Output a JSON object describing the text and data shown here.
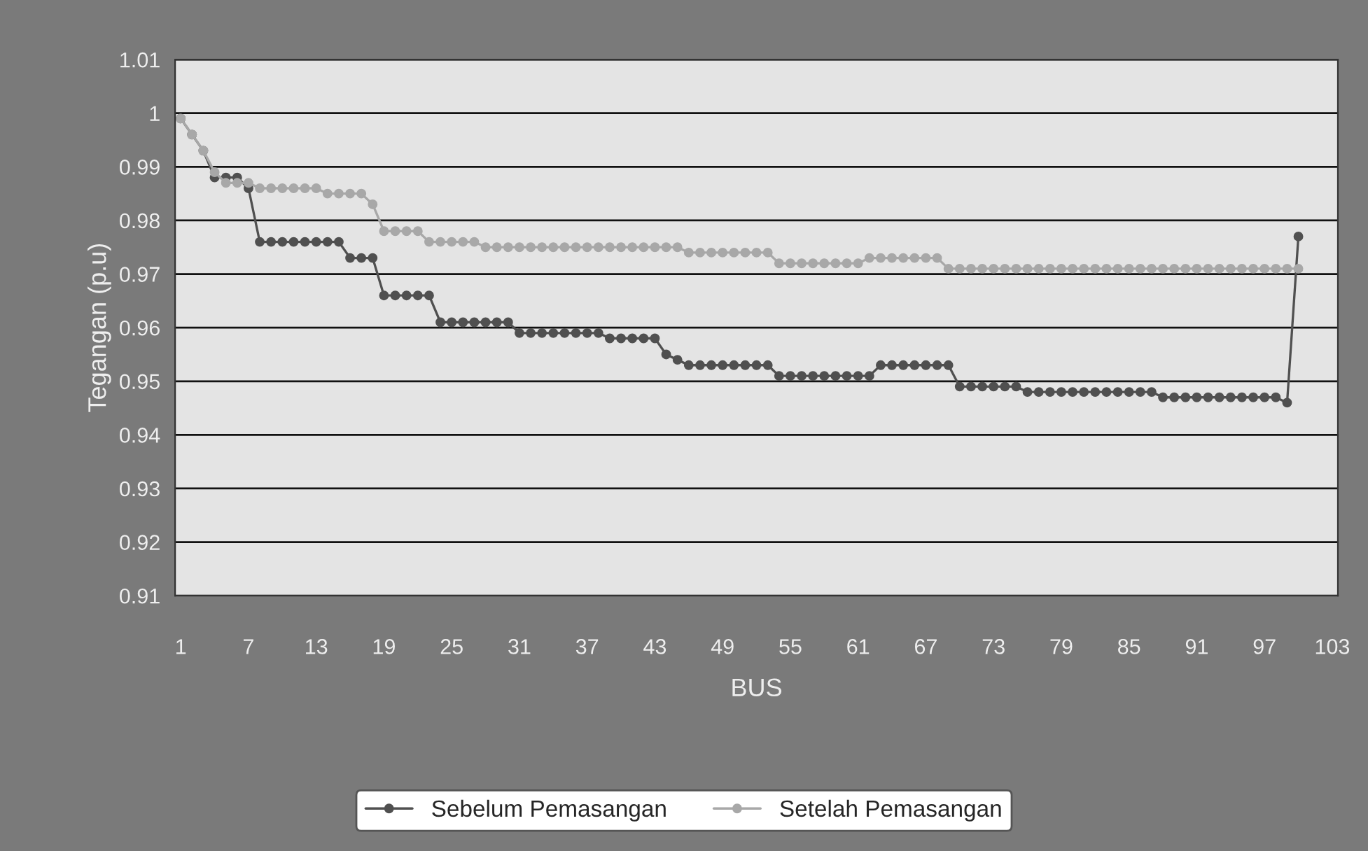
{
  "chart_data": {
    "type": "line",
    "xlabel": "BUS",
    "ylabel": "Tegangan (p.u)",
    "categories": [
      "1",
      null,
      null,
      null,
      null,
      null,
      "7",
      null,
      null,
      null,
      null,
      null,
      "13",
      null,
      null,
      null,
      null,
      null,
      "19",
      null,
      null,
      null,
      null,
      null,
      "25",
      null,
      null,
      null,
      null,
      null,
      "31",
      null,
      null,
      null,
      null,
      null,
      "37",
      null,
      null,
      null,
      null,
      null,
      "43",
      null,
      null,
      null,
      null,
      null,
      "49",
      null,
      null,
      null,
      null,
      null,
      "55",
      null,
      null,
      null,
      null,
      null,
      "61",
      null,
      null,
      null,
      null,
      null,
      "67",
      null,
      null,
      null,
      null,
      null,
      "73",
      null,
      null,
      null,
      null,
      null,
      "79",
      null,
      null,
      null,
      null,
      null,
      "85",
      null,
      null,
      null,
      null,
      null,
      "91",
      null,
      null,
      null,
      null,
      null,
      "97",
      null,
      null,
      null,
      null,
      null,
      "103"
    ],
    "series": [
      {
        "name": "Sebelum Pemasangan",
        "color": "#505050",
        "values": [
          0.999,
          0.996,
          0.993,
          0.988,
          0.988,
          0.988,
          0.986,
          0.976,
          0.976,
          0.976,
          0.976,
          0.976,
          0.976,
          0.976,
          0.976,
          0.973,
          0.973,
          0.973,
          0.966,
          0.966,
          0.966,
          0.966,
          0.966,
          0.961,
          0.961,
          0.961,
          0.961,
          0.961,
          0.961,
          0.961,
          0.959,
          0.959,
          0.959,
          0.959,
          0.959,
          0.959,
          0.959,
          0.959,
          0.958,
          0.958,
          0.958,
          0.958,
          0.958,
          0.955,
          0.954,
          0.953,
          0.953,
          0.953,
          0.953,
          0.953,
          0.953,
          0.953,
          0.953,
          0.951,
          0.951,
          0.951,
          0.951,
          0.951,
          0.951,
          0.951,
          0.951,
          0.951,
          0.953,
          0.953,
          0.953,
          0.953,
          0.953,
          0.953,
          0.953,
          0.949,
          0.949,
          0.949,
          0.949,
          0.949,
          0.949,
          0.948,
          0.948,
          0.948,
          0.948,
          0.948,
          0.948,
          0.948,
          0.948,
          0.948,
          0.948,
          0.948,
          0.948,
          0.947,
          0.947,
          0.947,
          0.947,
          0.947,
          0.947,
          0.947,
          0.947,
          0.947,
          0.947,
          0.947,
          0.946,
          0.977,
          null,
          null,
          null
        ]
      },
      {
        "name": "Setelah Pemasangan",
        "color": "#a8a8a8",
        "values": [
          0.999,
          0.996,
          0.993,
          0.989,
          0.987,
          0.987,
          0.987,
          0.986,
          0.986,
          0.986,
          0.986,
          0.986,
          0.986,
          0.985,
          0.985,
          0.985,
          0.985,
          0.983,
          0.978,
          0.978,
          0.978,
          0.978,
          0.976,
          0.976,
          0.976,
          0.976,
          0.976,
          0.975,
          0.975,
          0.975,
          0.975,
          0.975,
          0.975,
          0.975,
          0.975,
          0.975,
          0.975,
          0.975,
          0.975,
          0.975,
          0.975,
          0.975,
          0.975,
          0.975,
          0.975,
          0.974,
          0.974,
          0.974,
          0.974,
          0.974,
          0.974,
          0.974,
          0.974,
          0.972,
          0.972,
          0.972,
          0.972,
          0.972,
          0.972,
          0.972,
          0.972,
          0.973,
          0.973,
          0.973,
          0.973,
          0.973,
          0.973,
          0.973,
          0.971,
          0.971,
          0.971,
          0.971,
          0.971,
          0.971,
          0.971,
          0.971,
          0.971,
          0.971,
          0.971,
          0.971,
          0.971,
          0.971,
          0.971,
          0.971,
          0.971,
          0.971,
          0.971,
          0.971,
          0.971,
          0.971,
          0.971,
          0.971,
          0.971,
          0.971,
          0.971,
          0.971,
          0.971,
          0.971,
          0.971,
          0.971,
          null,
          null,
          null
        ]
      }
    ],
    "ylim": [
      0.91,
      1.01
    ],
    "yticks": [
      0.91,
      0.92,
      0.93,
      0.94,
      0.95,
      0.96,
      0.97,
      0.98,
      0.99,
      1,
      1.01
    ],
    "grid": "y",
    "legend": "bottom",
    "marker": "circle",
    "line_style": "solid"
  }
}
